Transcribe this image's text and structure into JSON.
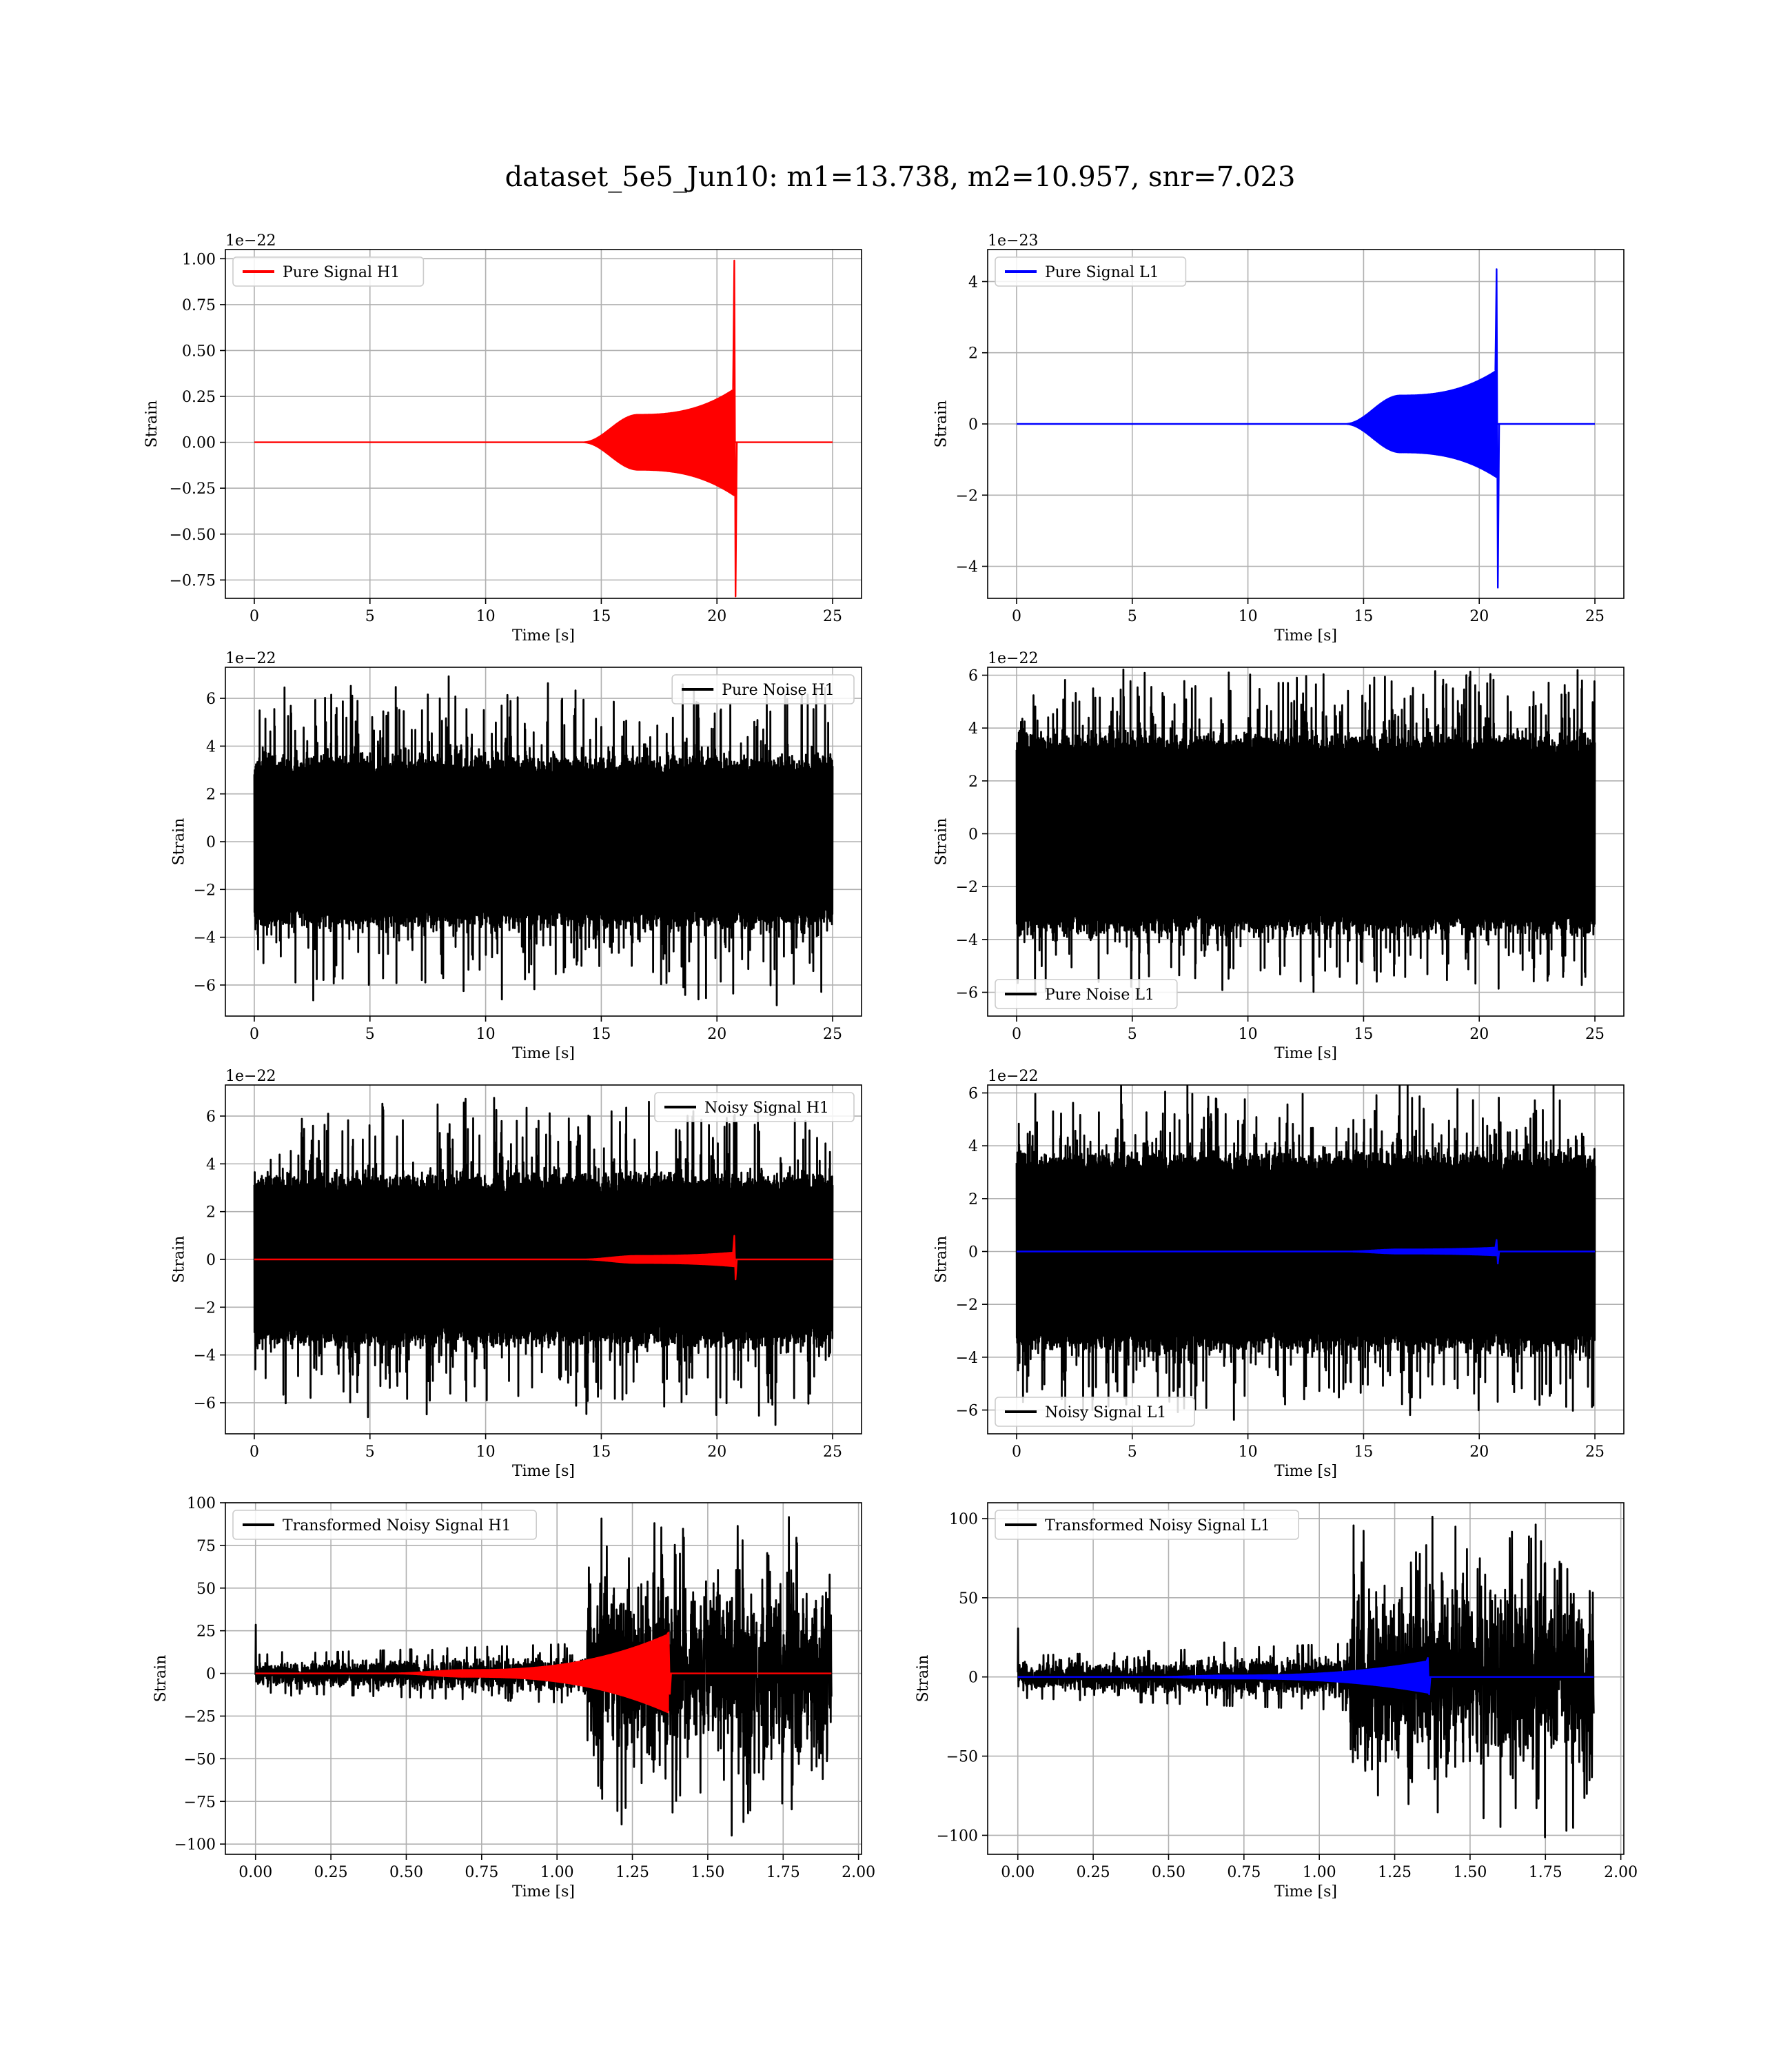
{
  "title": "dataset_5e5_Jun10: m1=13.738, m2=10.957, snr=7.023",
  "colors": {
    "h1_signal": "#ff0000",
    "l1_signal": "#0000ff",
    "noise": "#000000",
    "grid": "#b0b0b0"
  },
  "chart_data": [
    {
      "id": "pure-signal-h1",
      "type": "line",
      "title": "",
      "xlabel": "Time [s]",
      "ylabel": "Strain",
      "offset_text": "1e−22",
      "xlim": [
        -1.25,
        26.25
      ],
      "ylim": [
        -0.85,
        1.05
      ],
      "xticks": [
        0,
        5,
        10,
        15,
        20,
        25
      ],
      "xtick_labels": [
        "0",
        "5",
        "10",
        "15",
        "20",
        "25"
      ],
      "yticks": [
        -0.75,
        -0.5,
        -0.25,
        0,
        0.25,
        0.5,
        0.75,
        1.0
      ],
      "ytick_labels": [
        "−0.75",
        "−0.50",
        "−0.25",
        "0.00",
        "0.25",
        "0.50",
        "0.75",
        "1.00"
      ],
      "legend": {
        "placement": "top-left",
        "entries": [
          {
            "label": "Pure Signal H1",
            "color": "#ff0000"
          }
        ]
      },
      "grid": true,
      "series": [
        {
          "name": "Pure Signal H1",
          "kind": "chirp",
          "color": "#ff0000",
          "x_range": [
            0,
            25
          ],
          "onset": 14.2,
          "plateau_start": 16.6,
          "plateau_amp": 0.15,
          "merger_time": 20.75,
          "peak_amp": 0.29,
          "spike_max": 0.99,
          "spike_min": -0.84,
          "baseline": 0
        }
      ]
    },
    {
      "id": "pure-signal-l1",
      "type": "line",
      "title": "",
      "xlabel": "Time [s]",
      "ylabel": "Strain",
      "offset_text": "1e−23",
      "xlim": [
        -1.25,
        26.25
      ],
      "ylim": [
        -4.9,
        4.9
      ],
      "xticks": [
        0,
        5,
        10,
        15,
        20,
        25
      ],
      "xtick_labels": [
        "0",
        "5",
        "10",
        "15",
        "20",
        "25"
      ],
      "yticks": [
        -4,
        -2,
        0,
        2,
        4
      ],
      "ytick_labels": [
        "−4",
        "−2",
        "0",
        "2",
        "4"
      ],
      "legend": {
        "placement": "top-left",
        "entries": [
          {
            "label": "Pure Signal L1",
            "color": "#0000ff"
          }
        ]
      },
      "grid": true,
      "series": [
        {
          "name": "Pure Signal L1",
          "kind": "chirp",
          "color": "#0000ff",
          "x_range": [
            0,
            25
          ],
          "onset": 14.2,
          "plateau_start": 16.6,
          "plateau_amp": 0.8,
          "merger_time": 20.75,
          "peak_amp": 1.5,
          "spike_max": 4.35,
          "spike_min": -4.6,
          "baseline": 0
        }
      ]
    },
    {
      "id": "pure-noise-h1",
      "type": "line",
      "title": "",
      "xlabel": "Time [s]",
      "ylabel": "Strain",
      "offset_text": "1e−22",
      "xlim": [
        -1.25,
        26.25
      ],
      "ylim": [
        -7.3,
        7.3
      ],
      "xticks": [
        0,
        5,
        10,
        15,
        20,
        25
      ],
      "xtick_labels": [
        "0",
        "5",
        "10",
        "15",
        "20",
        "25"
      ],
      "yticks": [
        -6,
        -4,
        -2,
        0,
        2,
        4,
        6
      ],
      "ytick_labels": [
        "−6",
        "−4",
        "−2",
        "0",
        "2",
        "4",
        "6"
      ],
      "legend": {
        "placement": "top-right",
        "entries": [
          {
            "label": "Pure Noise H1",
            "color": "#000000"
          }
        ]
      },
      "grid": true,
      "series": [
        {
          "name": "Pure Noise H1",
          "kind": "noise",
          "color": "#000000",
          "x_range": [
            0,
            25
          ],
          "core_amp": 3.3,
          "peak_amp": 6.5,
          "seed": 11
        }
      ]
    },
    {
      "id": "pure-noise-l1",
      "type": "line",
      "title": "",
      "xlabel": "Time [s]",
      "ylabel": "Strain",
      "offset_text": "1e−22",
      "xlim": [
        -1.25,
        26.25
      ],
      "ylim": [
        -6.9,
        6.3
      ],
      "xticks": [
        0,
        5,
        10,
        15,
        20,
        25
      ],
      "xtick_labels": [
        "0",
        "5",
        "10",
        "15",
        "20",
        "25"
      ],
      "yticks": [
        -6,
        -4,
        -2,
        0,
        2,
        4,
        6
      ],
      "ytick_labels": [
        "−6",
        "−4",
        "−2",
        "0",
        "2",
        "4",
        "6"
      ],
      "legend": {
        "placement": "bottom-left",
        "entries": [
          {
            "label": "Pure Noise L1",
            "color": "#000000"
          }
        ]
      },
      "grid": true,
      "series": [
        {
          "name": "Pure Noise L1",
          "kind": "noise",
          "color": "#000000",
          "x_range": [
            0,
            25
          ],
          "core_amp": 3.5,
          "peak_amp": 6.0,
          "seed": 23
        }
      ]
    },
    {
      "id": "noisy-signal-h1",
      "type": "line",
      "title": "",
      "xlabel": "Time [s]",
      "ylabel": "Strain",
      "offset_text": "1e−22",
      "xlim": [
        -1.25,
        26.25
      ],
      "ylim": [
        -7.3,
        7.3
      ],
      "xticks": [
        0,
        5,
        10,
        15,
        20,
        25
      ],
      "xtick_labels": [
        "0",
        "5",
        "10",
        "15",
        "20",
        "25"
      ],
      "yticks": [
        -6,
        -4,
        -2,
        0,
        2,
        4,
        6
      ],
      "ytick_labels": [
        "−6",
        "−4",
        "−2",
        "0",
        "2",
        "4",
        "6"
      ],
      "legend": {
        "placement": "top-right",
        "entries": [
          {
            "label": "Noisy Signal H1",
            "color": "#000000"
          }
        ]
      },
      "grid": true,
      "series": [
        {
          "name": "Noisy Signal H1",
          "kind": "noise",
          "color": "#000000",
          "x_range": [
            0,
            25
          ],
          "core_amp": 3.3,
          "peak_amp": 6.5,
          "seed": 11
        },
        {
          "kind": "chirp",
          "color": "#ff0000",
          "x_range": [
            0,
            25
          ],
          "onset": 14.2,
          "plateau_start": 16.6,
          "plateau_amp": 0.15,
          "merger_time": 20.75,
          "peak_amp": 0.29,
          "spike_max": 0.99,
          "spike_min": -0.84,
          "baseline": 0
        }
      ]
    },
    {
      "id": "noisy-signal-l1",
      "type": "line",
      "title": "",
      "xlabel": "Time [s]",
      "ylabel": "Strain",
      "offset_text": "1e−22",
      "xlim": [
        -1.25,
        26.25
      ],
      "ylim": [
        -6.9,
        6.3
      ],
      "xticks": [
        0,
        5,
        10,
        15,
        20,
        25
      ],
      "xtick_labels": [
        "0",
        "5",
        "10",
        "15",
        "20",
        "25"
      ],
      "yticks": [
        -6,
        -4,
        -2,
        0,
        2,
        4,
        6
      ],
      "ytick_labels": [
        "−6",
        "−4",
        "−2",
        "0",
        "2",
        "4",
        "6"
      ],
      "legend": {
        "placement": "bottom-left",
        "entries": [
          {
            "label": "Noisy Signal L1",
            "color": "#000000"
          }
        ]
      },
      "grid": true,
      "series": [
        {
          "name": "Noisy Signal L1",
          "kind": "noise",
          "color": "#000000",
          "x_range": [
            0,
            25
          ],
          "core_amp": 3.5,
          "peak_amp": 6.0,
          "seed": 23
        },
        {
          "kind": "chirp",
          "color": "#0000ff",
          "x_range": [
            0,
            25
          ],
          "onset": 14.2,
          "plateau_start": 16.6,
          "plateau_amp": 0.08,
          "merger_time": 20.75,
          "peak_amp": 0.15,
          "spike_max": 0.44,
          "spike_min": -0.46,
          "baseline": 0
        }
      ]
    },
    {
      "id": "transformed-noisy-signal-h1",
      "type": "line",
      "title": "",
      "xlabel": "Time [s]",
      "ylabel": "Strain",
      "offset_text": "",
      "xlim": [
        -0.1,
        2.01
      ],
      "ylim": [
        -106,
        100
      ],
      "xticks": [
        0,
        0.25,
        0.5,
        0.75,
        1.0,
        1.25,
        1.5,
        1.75,
        2.0
      ],
      "xtick_labels": [
        "0.00",
        "0.25",
        "0.50",
        "0.75",
        "1.00",
        "1.25",
        "1.50",
        "1.75",
        "2.00"
      ],
      "yticks": [
        -100,
        -75,
        -50,
        -25,
        0,
        25,
        50,
        75,
        100
      ],
      "ytick_labels": [
        "−100",
        "−75",
        "−50",
        "−25",
        "0",
        "25",
        "50",
        "75",
        "100"
      ],
      "legend": {
        "placement": "top-left",
        "entries": [
          {
            "label": "Transformed Noisy Signal H1",
            "color": "#000000"
          }
        ]
      },
      "grid": true,
      "series": [
        {
          "name": "Transformed Noisy Signal H1",
          "kind": "transformed-noise",
          "color": "#000000",
          "x_range": [
            0,
            1.91
          ],
          "jump_time": 1.1,
          "amp_before": 5,
          "amp_after": 38,
          "peak_amp": 95,
          "seed": 37
        },
        {
          "kind": "chirp",
          "color": "#ff0000",
          "x_range": [
            0,
            1.91
          ],
          "onset": 0.45,
          "plateau_start": 0.7,
          "plateau_amp": 2,
          "merger_time": 1.37,
          "peak_amp": 23,
          "spike_max": 24,
          "spike_min": -12,
          "baseline": 0
        }
      ]
    },
    {
      "id": "transformed-noisy-signal-l1",
      "type": "line",
      "title": "",
      "xlabel": "Time [s]",
      "ylabel": "Strain",
      "offset_text": "",
      "xlim": [
        -0.1,
        2.01
      ],
      "ylim": [
        -112,
        110
      ],
      "xticks": [
        0,
        0.25,
        0.5,
        0.75,
        1.0,
        1.25,
        1.5,
        1.75,
        2.0
      ],
      "xtick_labels": [
        "0.00",
        "0.25",
        "0.50",
        "0.75",
        "1.00",
        "1.25",
        "1.50",
        "1.75",
        "2.00"
      ],
      "yticks": [
        -100,
        -50,
        0,
        50,
        100
      ],
      "ytick_labels": [
        "−100",
        "−50",
        "0",
        "50",
        "100"
      ],
      "legend": {
        "placement": "top-left",
        "entries": [
          {
            "label": "Transformed Noisy Signal L1",
            "color": "#000000"
          }
        ]
      },
      "grid": true,
      "series": [
        {
          "name": "Transformed Noisy Signal L1",
          "kind": "transformed-noise",
          "color": "#000000",
          "x_range": [
            0,
            1.91
          ],
          "jump_time": 1.1,
          "amp_before": 6,
          "amp_after": 40,
          "peak_amp": 102,
          "seed": 53
        },
        {
          "kind": "chirp",
          "color": "#0000ff",
          "x_range": [
            0,
            1.91
          ],
          "onset": 0.45,
          "plateau_start": 0.7,
          "plateau_amp": 1,
          "merger_time": 1.36,
          "peak_amp": 10,
          "spike_max": 12,
          "spike_min": -11,
          "baseline": 0
        }
      ]
    }
  ]
}
